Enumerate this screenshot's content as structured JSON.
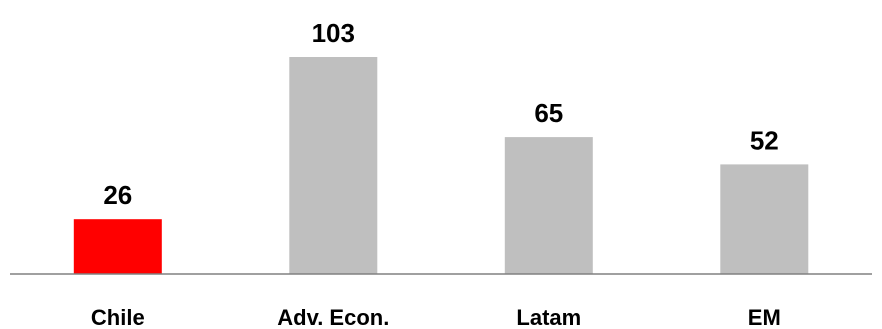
{
  "chart_data": {
    "type": "bar",
    "title": "",
    "xlabel": "",
    "ylabel": "",
    "categories": [
      "Chile",
      "Adv. Econ.",
      "Latam",
      "EM"
    ],
    "values": [
      26,
      103,
      65,
      52
    ],
    "data_labels": [
      "26",
      "103",
      "65",
      "52"
    ],
    "ylim": [
      0,
      115
    ],
    "grid": false,
    "legend": "none",
    "colors": {
      "highlight": "#ff0000",
      "default": "#bfbfbf",
      "axis": "#808080"
    },
    "bar_colors": [
      "#ff0000",
      "#bfbfbf",
      "#bfbfbf",
      "#bfbfbf"
    ]
  }
}
